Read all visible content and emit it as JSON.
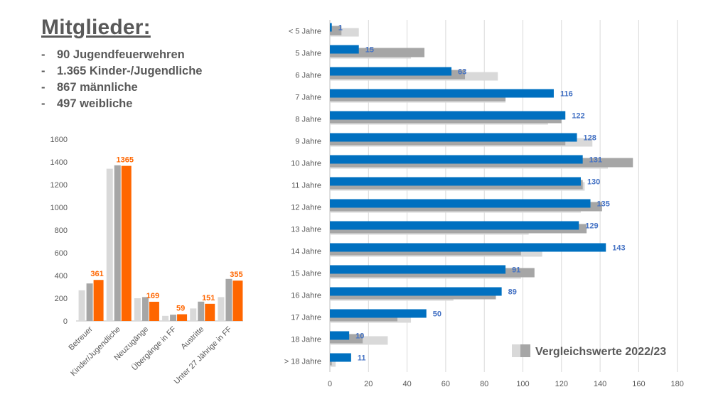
{
  "header": {
    "title": "Mitglieder:",
    "bullets": [
      {
        "dash": "-",
        "text": "90 Jugendfeuerwehren"
      },
      {
        "dash": "-",
        "text": "1.365 Kinder-/Jugendliche"
      },
      {
        "dash": "-",
        "text": "867 männliche"
      },
      {
        "dash": "-",
        "text": "497 weibliche"
      }
    ]
  },
  "colors": {
    "current": "#ff6600",
    "previous": "#a6a6a6",
    "older": "#d9d9d9",
    "current_blue": "#0070c0",
    "data_label_orange": "#ff6600",
    "data_label_blue": "#4472c4",
    "gridline": "#d9d9d9",
    "axis_text": "#595959"
  },
  "chart_data": [
    {
      "type": "bar",
      "orientation": "vertical",
      "categories": [
        "Betreuer",
        "Kinder/Jugendliche",
        "Neuzugänge",
        "Übergänge in FF",
        "Austritte",
        "Unter 27 Jährige in FF"
      ],
      "series": [
        {
          "values": [
            270,
            1340,
            200,
            45,
            110,
            210
          ]
        },
        {
          "values": [
            330,
            1370,
            210,
            55,
            170,
            370
          ]
        },
        {
          "values": [
            361,
            1365,
            169,
            59,
            151,
            355
          ]
        }
      ],
      "data_labels": [
        "361",
        "1365",
        "169",
        "59",
        "151",
        "355"
      ],
      "ylim": [
        0,
        1600
      ],
      "yticks": [
        "0",
        "200",
        "400",
        "600",
        "800",
        "1000",
        "1200",
        "1400",
        "1600"
      ],
      "grid": false
    },
    {
      "type": "bar",
      "orientation": "horizontal",
      "categories": [
        "< 5 Jahre",
        "5 Jahre",
        "6 Jahre",
        "7 Jahre",
        "8 Jahre",
        "9 Jahre",
        "10 Jahre",
        "11 Jahre",
        "12 Jahre",
        "13 Jahre",
        "14 Jahre",
        "15 Jahre",
        "16 Jahre",
        "17 Jahre",
        "18 Jahre",
        "> 18 Jahre"
      ],
      "series": [
        {
          "values": [
            1,
            15,
            63,
            116,
            122,
            128,
            131,
            130,
            135,
            129,
            143,
            91,
            89,
            50,
            10,
            11
          ]
        },
        {
          "name": "Vergleichswerte 2022/23",
          "values": [
            6,
            49,
            70,
            91,
            120,
            122,
            157,
            131,
            141,
            133,
            99,
            106,
            86,
            35,
            17,
            1
          ]
        },
        {
          "values": [
            15,
            42,
            87,
            91,
            113,
            136,
            144,
            132,
            130,
            103,
            110,
            99,
            64,
            42,
            30,
            3
          ]
        }
      ],
      "data_labels": [
        "1",
        "15",
        "63",
        "116",
        "122",
        "128",
        "131",
        "130",
        "135",
        "129",
        "143",
        "91",
        "89",
        "50",
        "10",
        "11"
      ],
      "xlim": [
        0,
        180
      ],
      "xticks": [
        "0",
        "20",
        "40",
        "60",
        "80",
        "100",
        "120",
        "140",
        "160",
        "180"
      ],
      "grid": true,
      "legend": {
        "label": "Vergleichswerte 2022/23",
        "placement": "bottom-right"
      }
    }
  ]
}
